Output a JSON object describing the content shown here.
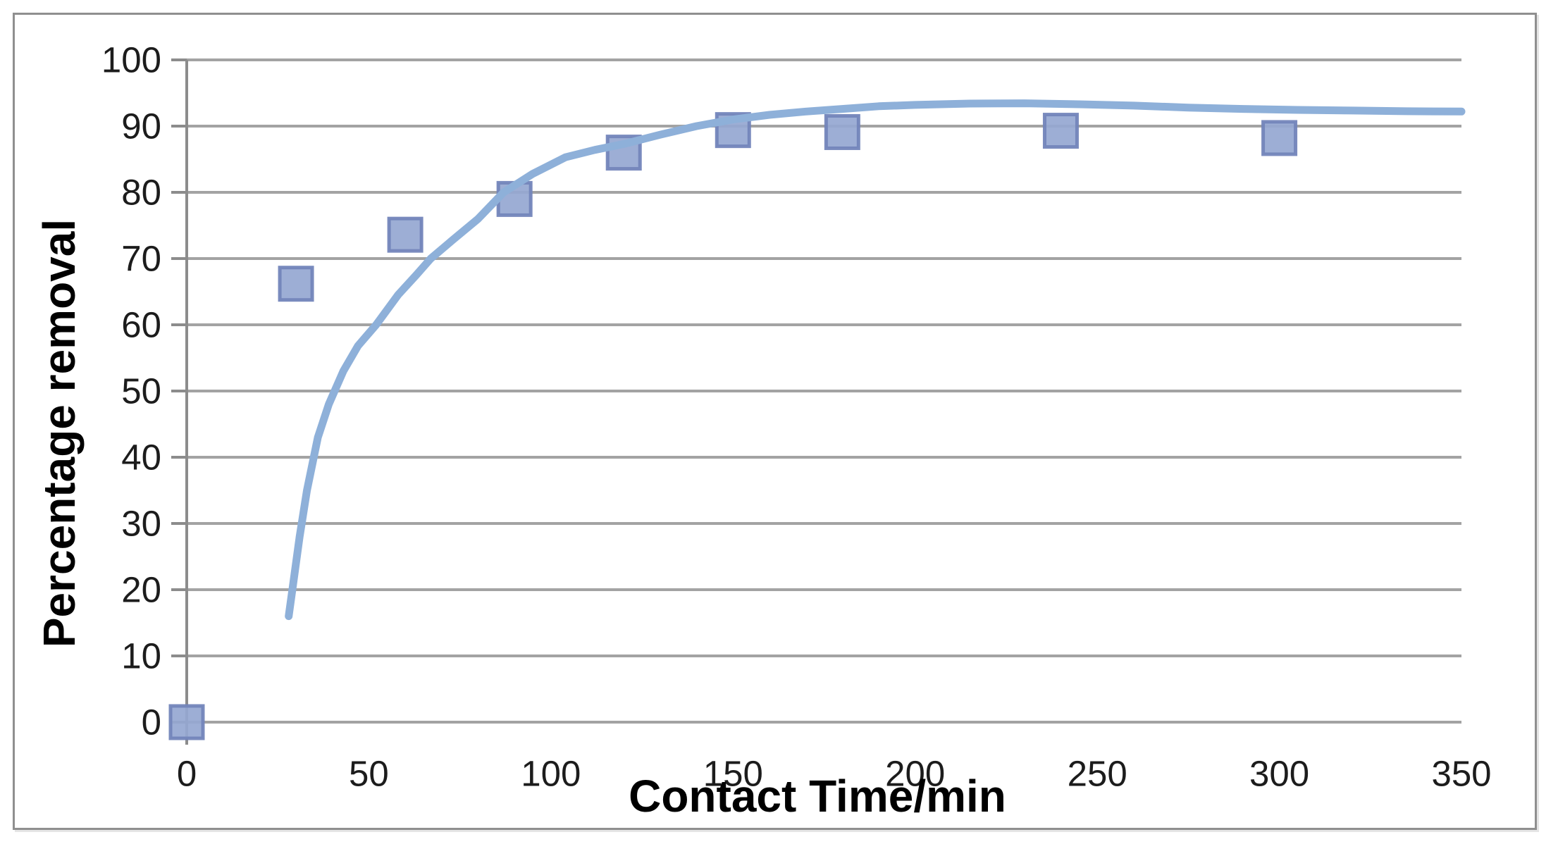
{
  "chart_data": {
    "type": "scatter",
    "title": "",
    "xlabel": "Contact Time/min",
    "ylabel": "Percentage removal",
    "xlim": [
      0,
      350
    ],
    "ylim": [
      0,
      100
    ],
    "x_ticks": [
      0,
      50,
      100,
      150,
      200,
      250,
      300,
      350
    ],
    "y_ticks": [
      0,
      10,
      20,
      30,
      40,
      50,
      60,
      70,
      80,
      90,
      100
    ],
    "grid": "horizontal-only",
    "legend": "none",
    "series": [
      {
        "name": "percentage-removal-data",
        "type": "scatter",
        "marker": "square",
        "points": [
          [
            0,
            0
          ],
          [
            30,
            66.2
          ],
          [
            60,
            73.6
          ],
          [
            90,
            79.0
          ],
          [
            120,
            86.0
          ],
          [
            150,
            89.4
          ],
          [
            180,
            89.1
          ],
          [
            240,
            89.3
          ],
          [
            300,
            88.2
          ]
        ]
      },
      {
        "name": "fitted-trend-curve",
        "type": "line",
        "points": [
          [
            28,
            16
          ],
          [
            29,
            20
          ],
          [
            31,
            28
          ],
          [
            33,
            35
          ],
          [
            36,
            43
          ],
          [
            39,
            48
          ],
          [
            43,
            53
          ],
          [
            47,
            56.8
          ],
          [
            52,
            60
          ],
          [
            58,
            64.5
          ],
          [
            63,
            67.5
          ],
          [
            67,
            70
          ],
          [
            73,
            72.8
          ],
          [
            80,
            76
          ],
          [
            87,
            80
          ],
          [
            95,
            82.8
          ],
          [
            104,
            85.3
          ],
          [
            112,
            86.4
          ],
          [
            120,
            87.3
          ],
          [
            130,
            88.7
          ],
          [
            140,
            90
          ],
          [
            150,
            91
          ],
          [
            160,
            91.7
          ],
          [
            170,
            92.2
          ],
          [
            180,
            92.6
          ],
          [
            190,
            93
          ],
          [
            200,
            93.2
          ],
          [
            215,
            93.4
          ],
          [
            230,
            93.45
          ],
          [
            245,
            93.3
          ],
          [
            260,
            93.1
          ],
          [
            275,
            92.8
          ],
          [
            290,
            92.6
          ],
          [
            305,
            92.45
          ],
          [
            320,
            92.35
          ],
          [
            335,
            92.25
          ],
          [
            350,
            92.2
          ]
        ]
      }
    ],
    "colors": {
      "marker_fill": "#95a7d1",
      "marker_border": "#7385bb",
      "trend_line": "#8eb0d9",
      "gridline": "#a3a3a3",
      "axis_line": "#8c8c8c",
      "tick_text": "#1c1c1c",
      "title_text": "#000000",
      "frame_border": "#8f8f8f"
    }
  }
}
